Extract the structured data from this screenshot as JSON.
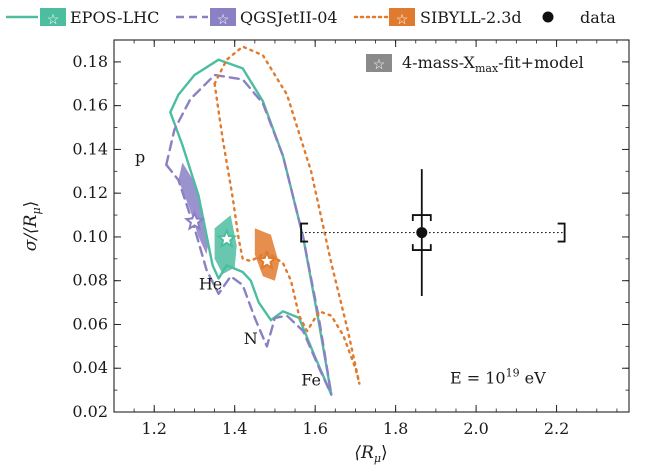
{
  "chart_data": {
    "type": "line",
    "xlabel": "⟨R_μ⟩",
    "ylabel": "σ/⟨R_μ⟩",
    "xlim": [
      1.1,
      2.38
    ],
    "ylim": [
      0.02,
      0.19
    ],
    "x_ticks": [
      "1.2",
      "1.4",
      "1.6",
      "1.8",
      "2.0",
      "2.2"
    ],
    "y_ticks": [
      "0.02",
      "0.04",
      "0.06",
      "0.08",
      "0.10",
      "0.12",
      "0.14",
      "0.16",
      "0.18"
    ],
    "legend_position": "top, outside plot",
    "colors": {
      "epos": "#4dbda0",
      "qgs": "#8a80c4",
      "sibyll": "#e07a2e",
      "data": "#111111"
    },
    "series": [
      {
        "name": "EPOS-LHC",
        "style": "solid",
        "outer": [
          [
            1.24,
            0.157
          ],
          [
            1.26,
            0.165
          ],
          [
            1.3,
            0.174
          ],
          [
            1.36,
            0.181
          ],
          [
            1.42,
            0.177
          ],
          [
            1.47,
            0.162
          ],
          [
            1.52,
            0.137
          ],
          [
            1.57,
            0.1
          ],
          [
            1.61,
            0.06
          ],
          [
            1.64,
            0.028
          ]
        ],
        "inner": [
          [
            1.24,
            0.157
          ],
          [
            1.27,
            0.142
          ],
          [
            1.31,
            0.119
          ],
          [
            1.345,
            0.087
          ],
          [
            1.36,
            0.081
          ],
          [
            1.38,
            0.087
          ],
          [
            1.42,
            0.084
          ],
          [
            1.44,
            0.08
          ],
          [
            1.46,
            0.07
          ],
          [
            1.49,
            0.062
          ],
          [
            1.52,
            0.066
          ],
          [
            1.56,
            0.063
          ],
          [
            1.6,
            0.045
          ],
          [
            1.64,
            0.028
          ]
        ]
      },
      {
        "name": "QGSJetII-04",
        "style": "dashed",
        "outer": [
          [
            1.23,
            0.133
          ],
          [
            1.25,
            0.149
          ],
          [
            1.29,
            0.163
          ],
          [
            1.35,
            0.174
          ],
          [
            1.42,
            0.172
          ],
          [
            1.47,
            0.161
          ],
          [
            1.52,
            0.137
          ],
          [
            1.57,
            0.1
          ],
          [
            1.61,
            0.062
          ],
          [
            1.64,
            0.028
          ]
        ],
        "inner": [
          [
            1.23,
            0.133
          ],
          [
            1.26,
            0.126
          ],
          [
            1.3,
            0.104
          ],
          [
            1.33,
            0.085
          ],
          [
            1.36,
            0.074
          ],
          [
            1.39,
            0.082
          ],
          [
            1.42,
            0.078
          ],
          [
            1.45,
            0.063
          ],
          [
            1.48,
            0.05
          ],
          [
            1.5,
            0.063
          ],
          [
            1.53,
            0.064
          ],
          [
            1.57,
            0.057
          ],
          [
            1.61,
            0.04
          ],
          [
            1.64,
            0.028
          ]
        ]
      },
      {
        "name": "SIBYLL-2.3d",
        "style": "dotted",
        "outer": [
          [
            1.35,
            0.17
          ],
          [
            1.38,
            0.181
          ],
          [
            1.42,
            0.187
          ],
          [
            1.47,
            0.183
          ],
          [
            1.53,
            0.165
          ],
          [
            1.59,
            0.13
          ],
          [
            1.64,
            0.088
          ],
          [
            1.68,
            0.058
          ],
          [
            1.71,
            0.033
          ]
        ],
        "inner": [
          [
            1.35,
            0.17
          ],
          [
            1.37,
            0.145
          ],
          [
            1.395,
            0.118
          ],
          [
            1.41,
            0.099
          ],
          [
            1.42,
            0.09
          ],
          [
            1.44,
            0.089
          ],
          [
            1.48,
            0.093
          ],
          [
            1.52,
            0.088
          ],
          [
            1.54,
            0.08
          ],
          [
            1.56,
            0.064
          ],
          [
            1.58,
            0.057
          ],
          [
            1.61,
            0.066
          ],
          [
            1.64,
            0.064
          ],
          [
            1.67,
            0.055
          ],
          [
            1.7,
            0.04
          ],
          [
            1.71,
            0.033
          ]
        ]
      }
    ],
    "fit_points": [
      {
        "model": "EPOS-LHC",
        "x": 1.38,
        "y": 0.099
      },
      {
        "model": "QGSJetII-04",
        "x": 1.3,
        "y": 0.107
      },
      {
        "model": "SIBYLL-2.3d",
        "x": 1.48,
        "y": 0.089
      }
    ],
    "fit_regions": [
      {
        "model": "QGSJetII-04",
        "points": [
          [
            1.27,
            0.134
          ],
          [
            1.3,
            0.125
          ],
          [
            1.32,
            0.112
          ],
          [
            1.335,
            0.098
          ],
          [
            1.33,
            0.092
          ],
          [
            1.31,
            0.1
          ],
          [
            1.29,
            0.112
          ],
          [
            1.26,
            0.126
          ]
        ]
      },
      {
        "model": "EPOS-LHC",
        "points": [
          [
            1.35,
            0.104
          ],
          [
            1.39,
            0.11
          ],
          [
            1.405,
            0.096
          ],
          [
            1.4,
            0.086
          ],
          [
            1.37,
            0.083
          ],
          [
            1.35,
            0.09
          ]
        ]
      },
      {
        "model": "SIBYLL-2.3d",
        "points": [
          [
            1.45,
            0.104
          ],
          [
            1.49,
            0.101
          ],
          [
            1.51,
            0.088
          ],
          [
            1.5,
            0.08
          ],
          [
            1.47,
            0.082
          ],
          [
            1.45,
            0.092
          ]
        ]
      }
    ],
    "data_point": {
      "label": "data",
      "x": 1.865,
      "y": 0.102,
      "stat_yerr": 0.029,
      "sys_yerr": 0.008,
      "sys_x_low": 1.565,
      "sys_x_high": 2.22
    },
    "annotations": {
      "primaries": [
        {
          "label": "p",
          "x": 1.165,
          "y": 0.134
        },
        {
          "label": "He",
          "x": 1.34,
          "y": 0.076
        },
        {
          "label": "N",
          "x": 1.44,
          "y": 0.051
        },
        {
          "label": "Fe",
          "x": 1.59,
          "y": 0.032
        }
      ],
      "energy": {
        "text": "E = 10",
        "sup": "19",
        "unit": " eV",
        "x": 1.935,
        "y": 0.033
      },
      "fit_legend": {
        "text": "4-mass-X",
        "sub": "max",
        "suffix": "-fit+model"
      }
    }
  }
}
